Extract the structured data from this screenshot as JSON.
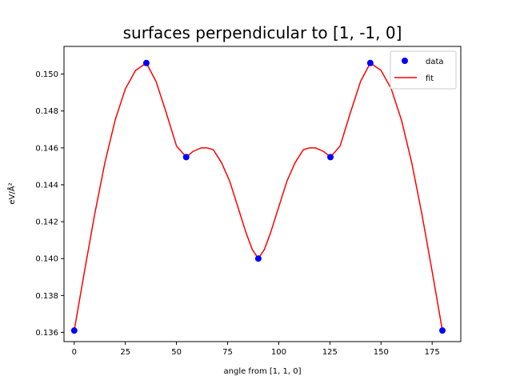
{
  "chart_data": {
    "type": "scatter",
    "title": "surfaces perpendicular to [1, -1, 0]",
    "xlabel": "angle from [1, 1, 0]",
    "ylabel": "eV/Å²",
    "xlim": [
      -5,
      189
    ],
    "ylim": [
      0.1355,
      0.1515
    ],
    "xticks": [
      0,
      25,
      50,
      75,
      100,
      125,
      150,
      175
    ],
    "yticks": [
      0.136,
      0.138,
      0.14,
      0.142,
      0.144,
      0.146,
      0.148,
      0.15
    ],
    "ytick_labels": [
      "0.136",
      "0.138",
      "0.140",
      "0.142",
      "0.144",
      "0.146",
      "0.148",
      "0.150"
    ],
    "grid": false,
    "legend_position": "top-right",
    "series": [
      {
        "name": "data",
        "kind": "scatter",
        "color": "#0000ff",
        "x": [
          0,
          35.26,
          54.74,
          90,
          125.26,
          144.74,
          180
        ],
        "y": [
          0.1361,
          0.1506,
          0.1455,
          0.14,
          0.1455,
          0.1506,
          0.1361
        ]
      },
      {
        "name": "fit",
        "kind": "line",
        "color": "#ff0000",
        "x": [
          0,
          5,
          10,
          15,
          20,
          25,
          30,
          35.26,
          40,
          45,
          50,
          54.74,
          58,
          62,
          65,
          68,
          72,
          76,
          80,
          84,
          87,
          90,
          93,
          96,
          100,
          104,
          108,
          112,
          115,
          118,
          122,
          125.26,
          130,
          135,
          140,
          144.74,
          150,
          155,
          160,
          165,
          170,
          175,
          180
        ],
        "y": [
          0.1361,
          0.1393,
          0.1424,
          0.1452,
          0.1475,
          0.1492,
          0.1502,
          0.1506,
          0.1496,
          0.1479,
          0.1461,
          0.1455,
          0.1458,
          0.146,
          0.146,
          0.1459,
          0.1452,
          0.1442,
          0.1428,
          0.1414,
          0.1405,
          0.14,
          0.1405,
          0.1414,
          0.1428,
          0.1442,
          0.1452,
          0.1459,
          0.146,
          0.146,
          0.1458,
          0.1455,
          0.1461,
          0.1479,
          0.1496,
          0.1506,
          0.1502,
          0.1492,
          0.1475,
          0.1452,
          0.1424,
          0.1393,
          0.1361
        ]
      }
    ]
  }
}
